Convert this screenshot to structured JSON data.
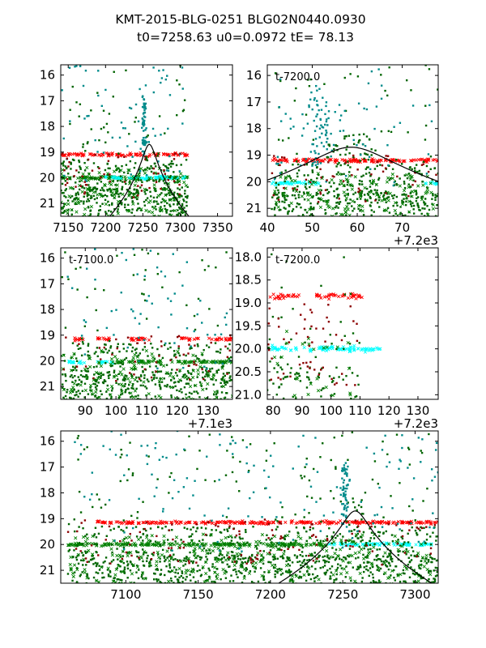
{
  "figure": {
    "title_line1": "KMT-2015-BLG-0251 BLG02N0440.0930",
    "title_line2": "t0=7258.63 u0=0.0972 tE=  78.13"
  },
  "model": {
    "t0": 7258.63,
    "u0": 0.0972,
    "tE": 78.13
  },
  "colors": {
    "red": "#ff0000",
    "darkred": "#8b0000",
    "green": "#008000",
    "darkgreen": "#006400",
    "cyan": "#00ffff",
    "darkcyan": "#008b8b",
    "model": "#000000"
  },
  "chart_data": [
    {
      "type": "scatter",
      "panel": "top-left",
      "label": "",
      "xlim": [
        7140,
        7370
      ],
      "ylim": [
        21.5,
        15.6
      ],
      "xticks": [
        7150,
        7200,
        7250,
        7300,
        7350
      ],
      "xtick_labels": [
        "7150",
        "7200",
        "7250",
        "7300",
        "7350"
      ],
      "yticks": [
        16,
        17,
        18,
        19,
        20,
        21
      ],
      "ytick_labels": [
        "16",
        "17",
        "18",
        "19",
        "20",
        "21"
      ],
      "offset_label": "",
      "data_xrange": [
        7140,
        7310
      ],
      "series": [
        {
          "name": "red baseline",
          "color": "#ff0000",
          "marker": "x",
          "baseline": 19.1,
          "x_segments": [
            [
              7140,
              7310
            ]
          ]
        },
        {
          "name": "green baseline",
          "color": "#008000",
          "marker": "x",
          "baseline": 20.0,
          "x_segments": [
            [
              7140,
              7310
            ]
          ]
        },
        {
          "name": "cyan baseline",
          "color": "#00ffff",
          "marker": "x",
          "baseline": 20.0,
          "x_segments": [
            [
              7200,
              7310
            ]
          ]
        },
        {
          "name": "dark green points",
          "color": "#006400",
          "marker": "s"
        },
        {
          "name": "dark cyan points",
          "color": "#008b8b",
          "marker": "s"
        },
        {
          "name": "dark red points",
          "color": "#8b0000",
          "marker": "s"
        }
      ],
      "model_curve": true
    },
    {
      "type": "scatter",
      "panel": "top-right",
      "label": "t-7200.0",
      "xlim": [
        7240,
        7278
      ],
      "ylim": [
        21.3,
        15.6
      ],
      "xticks": [
        7240,
        7250,
        7260,
        7270
      ],
      "xtick_labels": [
        "40",
        "50",
        "60",
        "70"
      ],
      "yticks": [
        16,
        17,
        18,
        19,
        20,
        21
      ],
      "ytick_labels": [
        "16",
        "17",
        "18",
        "19",
        "20",
        "21"
      ],
      "offset_label": "+7.2e3",
      "data_xrange": [
        7241,
        7278
      ],
      "series": [
        {
          "name": "red baseline",
          "color": "#ff0000",
          "marker": "x",
          "baseline": 19.2,
          "x_segments": [
            [
              7241,
              7278
            ]
          ]
        },
        {
          "name": "cyan baseline",
          "color": "#00ffff",
          "marker": "x",
          "baseline": 20.05,
          "x_segments": [
            [
              7241,
              7252
            ],
            [
              7275,
              7278
            ]
          ]
        },
        {
          "name": "dark green points",
          "color": "#006400",
          "marker": "s"
        },
        {
          "name": "dark cyan points",
          "color": "#008b8b",
          "marker": "s"
        },
        {
          "name": "dark red points",
          "color": "#8b0000",
          "marker": "s"
        }
      ],
      "model_curve": true
    },
    {
      "type": "scatter",
      "panel": "middle-left",
      "label": "t-7100.0",
      "xlim": [
        7082,
        7138
      ],
      "ylim": [
        21.5,
        15.6
      ],
      "xticks": [
        7090,
        7100,
        7110,
        7120,
        7130
      ],
      "xtick_labels": [
        "90",
        "100",
        "110",
        "120",
        "130"
      ],
      "yticks": [
        16,
        17,
        18,
        19,
        20,
        21
      ],
      "ytick_labels": [
        "16",
        "17",
        "18",
        "19",
        "20",
        "21"
      ],
      "offset_label": "+7.1e3",
      "data_xrange": [
        7082,
        7138
      ],
      "series": [
        {
          "name": "red baseline",
          "color": "#ff0000",
          "marker": "x",
          "baseline": 19.15,
          "x_segments": [
            [
              7086,
              7090
            ],
            [
              7094,
              7099
            ],
            [
              7104,
              7111
            ],
            [
              7121,
              7127
            ],
            [
              7130,
              7138
            ]
          ]
        },
        {
          "name": "cyan baseline",
          "color": "#00ffff",
          "marker": "x",
          "baseline": 20.05,
          "x_segments": [
            [
              7084,
              7090
            ],
            [
              7094,
              7099
            ]
          ]
        },
        {
          "name": "green baseline",
          "color": "#008000",
          "marker": "x",
          "baseline": 20.05,
          "x_segments": [
            [
              7099,
              7114
            ],
            [
              7120,
              7138
            ]
          ]
        },
        {
          "name": "dark green points",
          "color": "#006400",
          "marker": "s"
        },
        {
          "name": "dark cyan points",
          "color": "#008b8b",
          "marker": "s"
        },
        {
          "name": "dark red points",
          "color": "#8b0000",
          "marker": "s"
        }
      ],
      "model_curve": false
    },
    {
      "type": "scatter",
      "panel": "middle-right",
      "label": "t-7200.0",
      "xlim": [
        7278,
        7337
      ],
      "ylim": [
        21.1,
        17.8
      ],
      "xticks": [
        7280,
        7290,
        7300,
        7310,
        7320,
        7330
      ],
      "xtick_labels": [
        "80",
        "90",
        "100",
        "110",
        "120",
        "130"
      ],
      "yticks": [
        18,
        18.5,
        19,
        19.5,
        20,
        20.5,
        21
      ],
      "ytick_labels": [
        "18.0",
        "18.5",
        "19.0",
        "19.5",
        "20.0",
        "20.5",
        "21.0"
      ],
      "offset_label": "+7.2e3",
      "data_xrange": [
        7278,
        7310
      ],
      "series": [
        {
          "name": "red baseline",
          "color": "#ff0000",
          "marker": "x",
          "baseline": 18.85,
          "x_segments": [
            [
              7279,
              7289
            ],
            [
              7295,
              7311
            ]
          ]
        },
        {
          "name": "cyan baseline",
          "color": "#00ffff",
          "marker": "x",
          "baseline": 20.0,
          "x_segments": [
            [
              7279,
              7317
            ]
          ]
        },
        {
          "name": "dark green points",
          "color": "#006400",
          "marker": "s"
        },
        {
          "name": "dark red points",
          "color": "#8b0000",
          "marker": "s"
        }
      ],
      "model_curve": false
    },
    {
      "type": "scatter",
      "panel": "bottom",
      "label": "",
      "xlim": [
        7055,
        7316
      ],
      "ylim": [
        21.5,
        15.6
      ],
      "xticks": [
        7100,
        7150,
        7200,
        7250,
        7300
      ],
      "xtick_labels": [
        "7100",
        "7150",
        "7200",
        "7250",
        "7300"
      ],
      "yticks": [
        16,
        17,
        18,
        19,
        20,
        21
      ],
      "ytick_labels": [
        "16",
        "17",
        "18",
        "19",
        "20",
        "21"
      ],
      "offset_label": "",
      "data_xrange": [
        7060,
        7316
      ],
      "series": [
        {
          "name": "red baseline",
          "color": "#ff0000",
          "marker": "x",
          "baseline": 19.15,
          "x_segments": [
            [
              7080,
              7316
            ]
          ]
        },
        {
          "name": "green baseline",
          "color": "#008000",
          "marker": "x",
          "baseline": 20.0,
          "x_segments": [
            [
              7060,
              7240
            ]
          ]
        },
        {
          "name": "cyan baseline",
          "color": "#00ffff",
          "marker": "x",
          "baseline": 20.0,
          "x_segments": [
            [
              7240,
              7316
            ]
          ]
        },
        {
          "name": "dark green points",
          "color": "#006400",
          "marker": "s"
        },
        {
          "name": "dark cyan points",
          "color": "#008b8b",
          "marker": "s"
        },
        {
          "name": "dark red points",
          "color": "#8b0000",
          "marker": "s"
        }
      ],
      "model_curve": true
    }
  ]
}
